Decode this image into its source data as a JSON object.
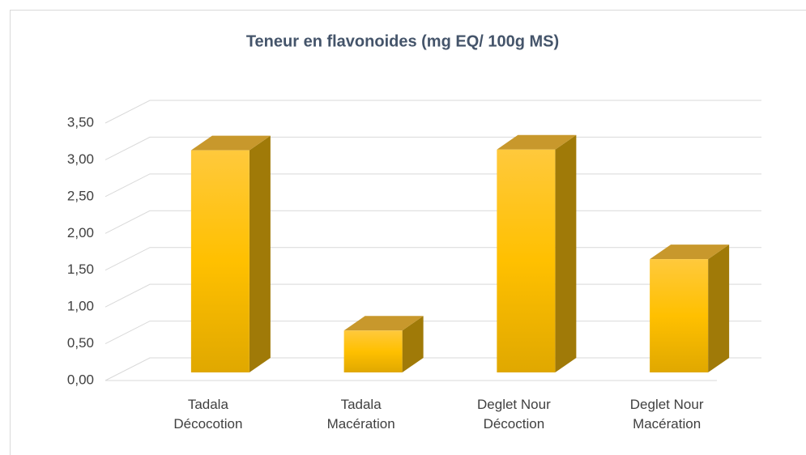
{
  "chart_data": {
    "type": "bar3d",
    "title": "Teneur en flavonoides (mg EQ/ 100g MS)",
    "categories": [
      "Tadala Décocotion",
      "Tadala Macération",
      "Deglet Nour Décoction",
      "Deglet Nour Macération"
    ],
    "values": [
      3.02,
      0.57,
      3.03,
      1.54
    ],
    "color": "#ffc000",
    "ylim": [
      0,
      3.5
    ],
    "yticks": [
      {
        "value": 0,
        "label": "0,00"
      },
      {
        "value": 0.5,
        "label": "0,50"
      },
      {
        "value": 1,
        "label": "1,00"
      },
      {
        "value": 1.5,
        "label": "1,50"
      },
      {
        "value": 2,
        "label": "2,00"
      },
      {
        "value": 2.5,
        "label": "2,50"
      },
      {
        "value": 3,
        "label": "3,00"
      },
      {
        "value": 3.5,
        "label": "3,50"
      }
    ],
    "grid": true
  }
}
